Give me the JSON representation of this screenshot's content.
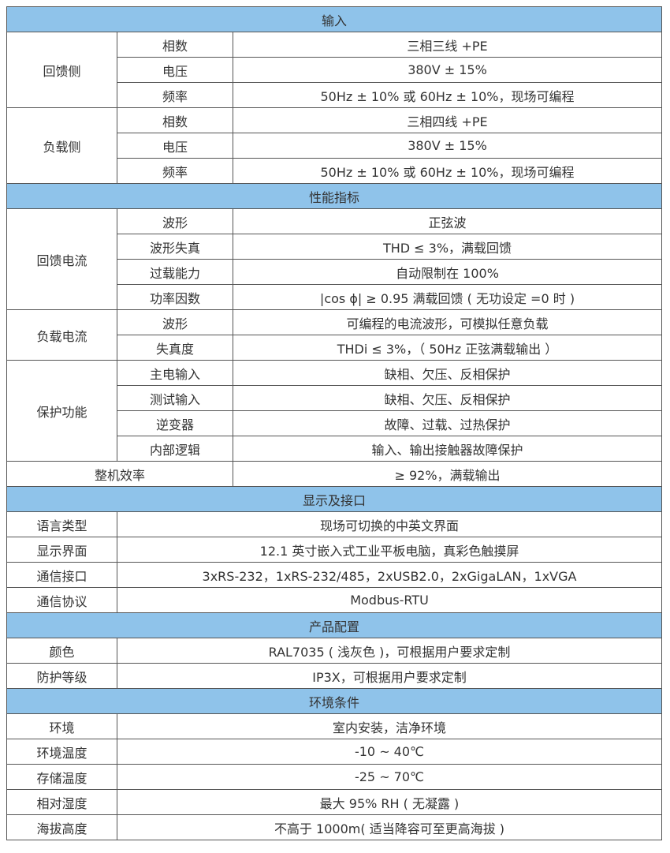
{
  "sections": [
    {
      "title": "输入",
      "groups": [
        {
          "label": "回馈侧",
          "items": [
            [
              "相数",
              "三相三线 +PE"
            ],
            [
              "电压",
              "380V ± 15%"
            ],
            [
              "频率",
              "50Hz ± 10% 或 60Hz ± 10%，现场可编程"
            ]
          ]
        },
        {
          "label": "负载侧",
          "items": [
            [
              "相数",
              "三相四线 +PE"
            ],
            [
              "电压",
              "380V ± 15%"
            ],
            [
              "频率",
              "50Hz ± 10% 或 60Hz ± 10%，现场可编程"
            ]
          ]
        }
      ]
    },
    {
      "title": "性能指标",
      "groups": [
        {
          "label": "回馈电流",
          "items": [
            [
              "波形",
              "正弦波"
            ],
            [
              "波形失真",
              "THD ≤ 3%，满载回馈"
            ],
            [
              "过载能力",
              "自动限制在 100%"
            ],
            [
              "功率因数",
              "|cos ϕ| ≥ 0.95  满载回馈 ( 无功设定 =0 时 )"
            ]
          ]
        },
        {
          "label": "负载电流",
          "items": [
            [
              "波形",
              "可编程的电流波形，可模拟任意负载"
            ],
            [
              "失真度",
              "THDi ≤ 3%，（ 50Hz 正弦满载输出 ）"
            ]
          ]
        },
        {
          "label": "保护功能",
          "items": [
            [
              "主电输入",
              "缺相、欠压、反相保护"
            ],
            [
              "测试输入",
              "缺相、欠压、反相保护"
            ],
            [
              "逆变器",
              "故障、过载、过热保护"
            ],
            [
              "内部逻辑",
              "输入、输出接触器故障保护"
            ]
          ]
        }
      ],
      "summary": [
        "整机效率",
        "≥ 92%，满载输出"
      ]
    },
    {
      "title": "显示及接口",
      "rows": [
        [
          "语言类型",
          "现场可切换的中英文界面"
        ],
        [
          "显示界面",
          "12.1 英寸嵌入式工业平板电脑，真彩色触摸屏"
        ],
        [
          "通信接口",
          "3xRS-232，1xRS-232/485，2xUSB2.0，2xGigaLAN，1xVGA"
        ],
        [
          "通信协议",
          "Modbus-RTU"
        ]
      ]
    },
    {
      "title": "产品配置",
      "rows": [
        [
          "颜色",
          "RAL7035 ( 浅灰色 )，可根据用户要求定制"
        ],
        [
          "防护等级",
          "IP3X，可根据用户要求定制"
        ]
      ]
    },
    {
      "title": "环境条件",
      "rows": [
        [
          "环境",
          "室内安装，洁净环境"
        ],
        [
          "环境温度",
          "-10 ~ 40℃"
        ],
        [
          "存储温度",
          "-25 ~ 70℃"
        ],
        [
          "相对湿度",
          "最大 95% RH ( 无凝露 )"
        ],
        [
          "海拔高度",
          "不高于 1000m( 适当降容可至更高海拔 )"
        ]
      ]
    }
  ]
}
